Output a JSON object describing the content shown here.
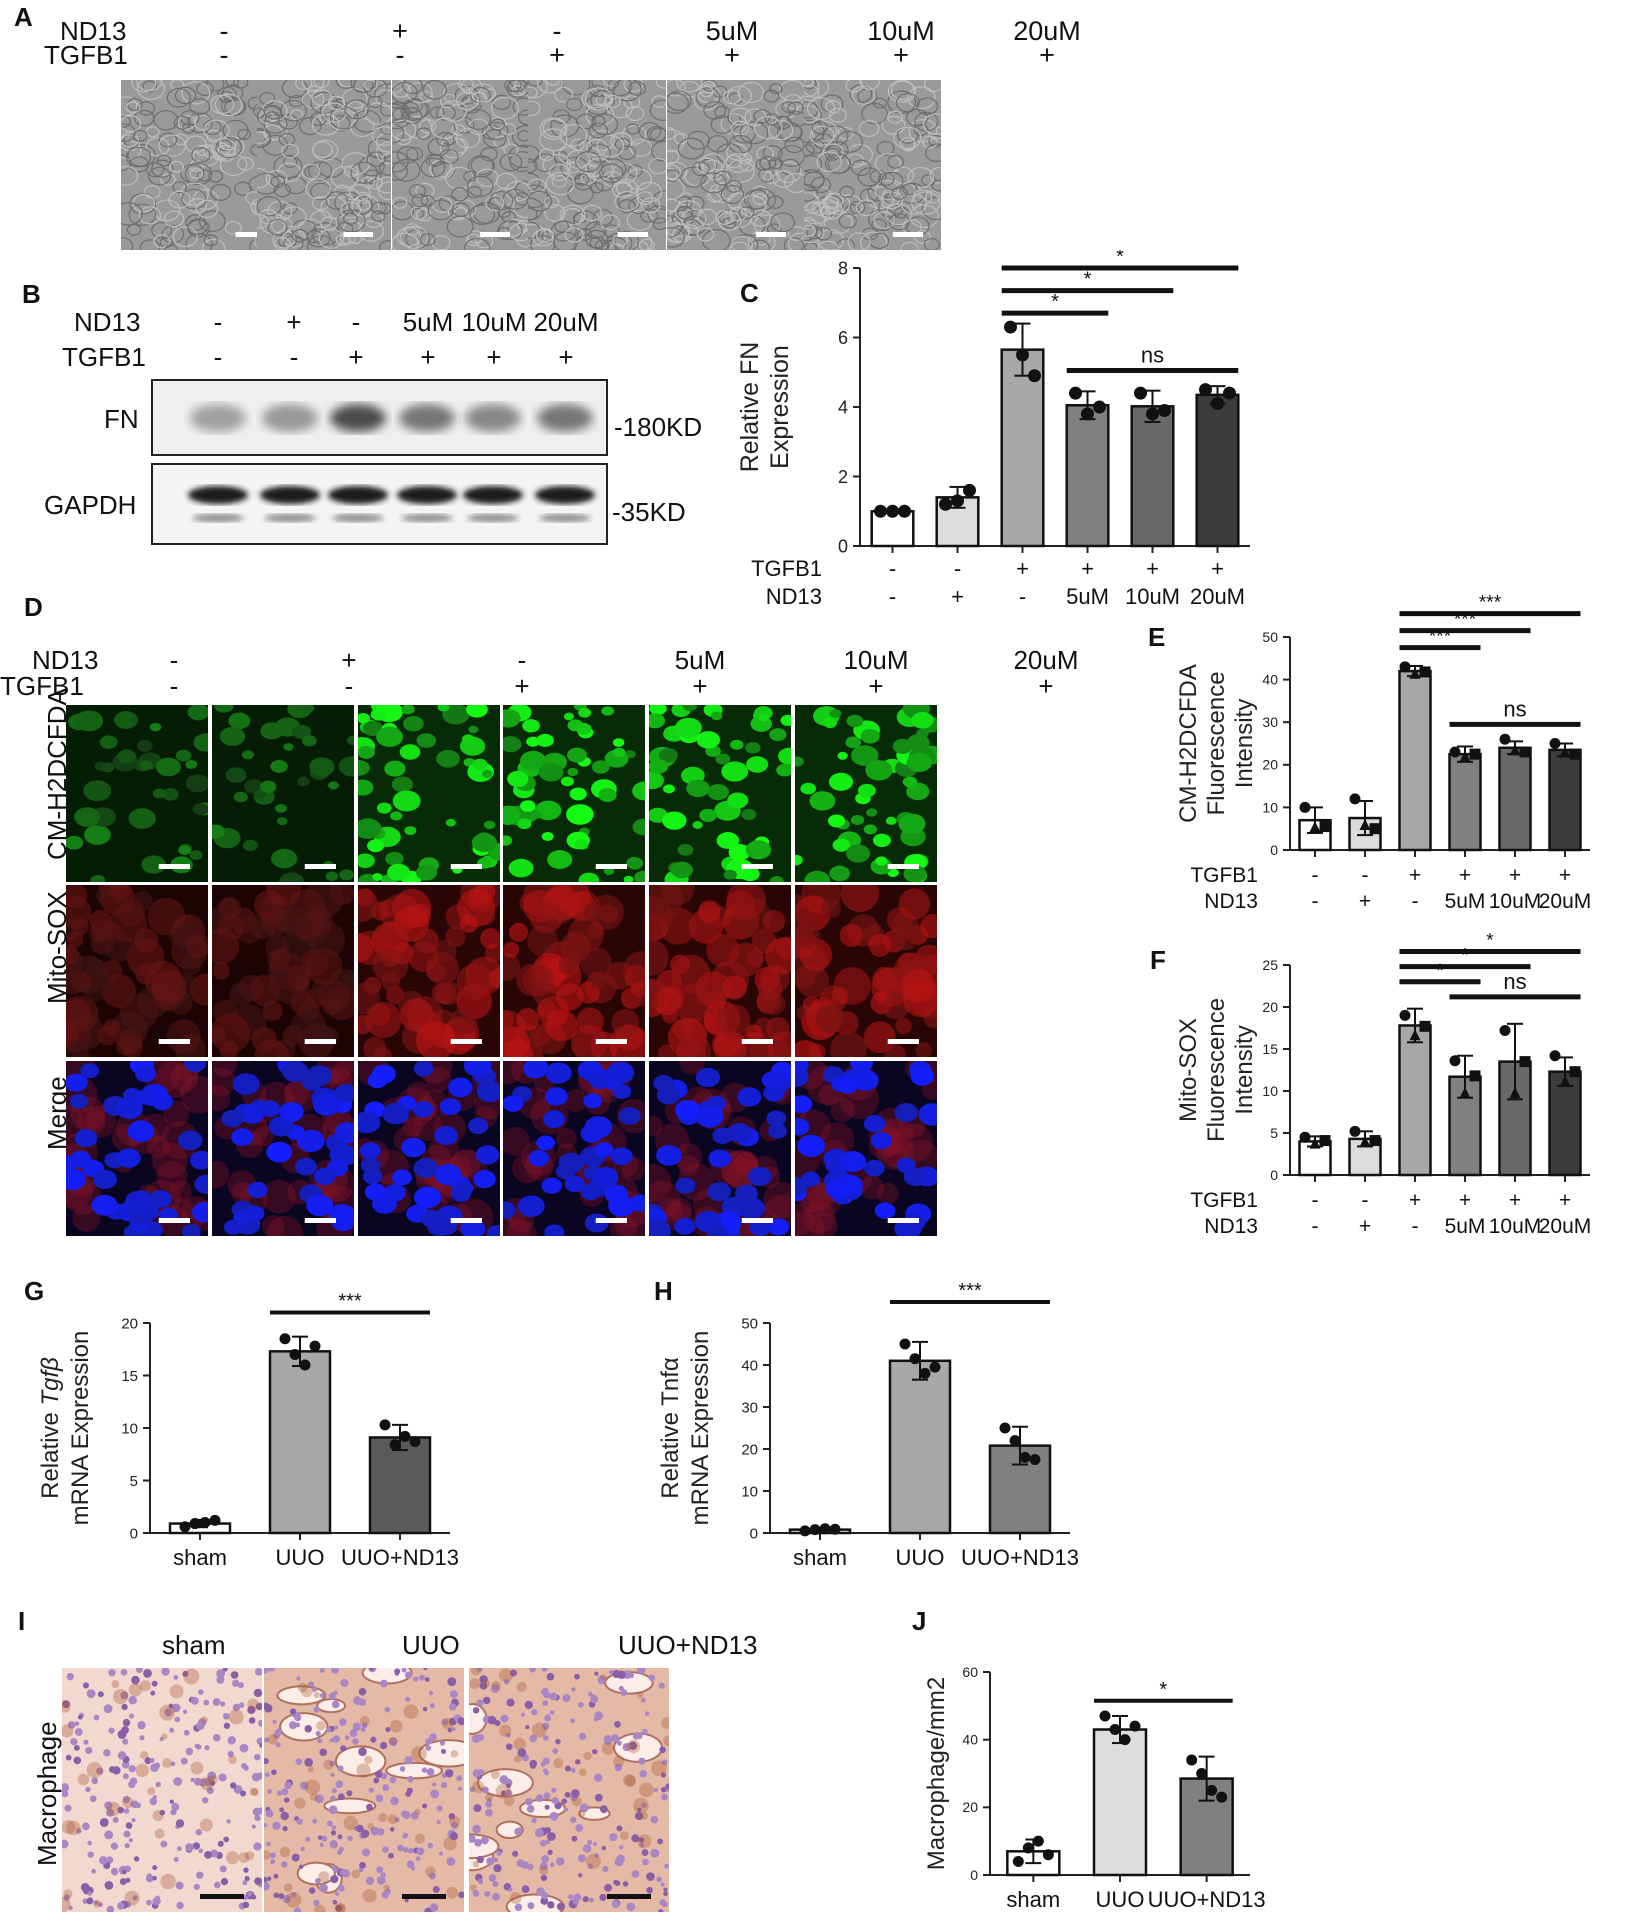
{
  "panels": {
    "A": {
      "label": "A",
      "row_labels": [
        "ND13",
        "TGFB1"
      ],
      "nd13": [
        "-",
        "+",
        "-",
        "5uM",
        "10uM",
        "20uM"
      ],
      "tgfb1": [
        "-",
        "-",
        "+",
        "+",
        "+",
        "+"
      ]
    },
    "B": {
      "label": "B",
      "row_labels": [
        "ND13",
        "TGFB1"
      ],
      "nd13": [
        "-",
        "+",
        "-",
        "5uM",
        "10uM",
        "20uM"
      ],
      "tgfb1": [
        "-",
        "-",
        "+",
        "+",
        "+",
        "+"
      ],
      "blot_labels": [
        "FN",
        "GAPDH"
      ],
      "kd_labels": [
        "-180KD",
        "-35KD"
      ]
    },
    "C": {
      "label": "C"
    },
    "D": {
      "label": "D",
      "row_labels": [
        "ND13",
        "TGFB1"
      ],
      "nd13": [
        "-",
        "+",
        "-",
        "5uM",
        "10uM",
        "20uM"
      ],
      "tgfb1": [
        "-",
        "-",
        "+",
        "+",
        "+",
        "+"
      ],
      "channel_labels": [
        "CM-H2DCFDA",
        "Mito-SOX",
        "Merge"
      ]
    },
    "E": {
      "label": "E"
    },
    "F": {
      "label": "F"
    },
    "G": {
      "label": "G"
    },
    "H": {
      "label": "H"
    },
    "I": {
      "label": "I",
      "row_label": "Macrophage",
      "columns": [
        "sham",
        "UUO",
        "UUO+ND13"
      ]
    },
    "J": {
      "label": "J"
    }
  },
  "chart_data": [
    {
      "id": "C",
      "type": "bar",
      "ylabel_lines": [
        "Relative FN",
        "Expression"
      ],
      "ylim": [
        0,
        8
      ],
      "yticks": [
        0,
        2,
        4,
        6,
        8
      ],
      "group_rows": [
        {
          "name": "TGFB1",
          "values": [
            "-",
            "-",
            "+",
            "+",
            "+",
            "+"
          ]
        },
        {
          "name": "ND13",
          "values": [
            "-",
            "+",
            "-",
            "5uM",
            "10uM",
            "20uM"
          ]
        }
      ],
      "values": [
        1.0,
        1.4,
        5.65,
        4.05,
        4.02,
        4.35
      ],
      "errors": [
        0.02,
        0.3,
        0.75,
        0.4,
        0.45,
        0.25
      ],
      "points": [
        [
          1.0,
          1.0,
          1.0
        ],
        [
          1.2,
          1.3,
          1.6
        ],
        [
          6.3,
          5.5,
          4.9
        ],
        [
          4.4,
          3.8,
          4.0
        ],
        [
          4.4,
          3.8,
          3.9
        ],
        [
          4.5,
          4.1,
          4.4
        ]
      ],
      "bar_colors": [
        "#ffffff",
        "#dcdcdc",
        "#a8a8a8",
        "#808080",
        "#696969",
        "#3c3c3c"
      ],
      "marker": "circle",
      "significance": [
        {
          "from": 2,
          "to": 3,
          "label": "*",
          "y": 6.7
        },
        {
          "from": 2,
          "to": 4,
          "label": "*",
          "y": 7.35
        },
        {
          "from": 2,
          "to": 5,
          "label": "*",
          "y": 8.0
        },
        {
          "from": 3,
          "to": 5,
          "label": "ns",
          "y": 5.05
        }
      ]
    },
    {
      "id": "E",
      "type": "bar",
      "ylabel_lines": [
        "CM-H2DCFDA",
        "Fluorescence",
        "Intensity"
      ],
      "ylim": [
        0,
        50
      ],
      "yticks": [
        0,
        10,
        20,
        30,
        40,
        50
      ],
      "group_rows": [
        {
          "name": "TGFB1",
          "values": [
            "-",
            "-",
            "+",
            "+",
            "+",
            "+"
          ]
        },
        {
          "name": "ND13",
          "values": [
            "-",
            "+",
            "-",
            "5uM",
            "10uM",
            "20uM"
          ]
        }
      ],
      "values": [
        7.0,
        7.5,
        42.0,
        22.5,
        24.0,
        23.5
      ],
      "errors": [
        3.0,
        4.0,
        1.2,
        1.8,
        1.5,
        1.5
      ],
      "points": [
        [
          10.0,
          5.5,
          5.5
        ],
        [
          12.0,
          6.0,
          5.0
        ],
        [
          43.0,
          41.5,
          41.8
        ],
        [
          23.0,
          22.0,
          22.5
        ],
        [
          26.0,
          23.5,
          23.0
        ],
        [
          25.0,
          23.0,
          22.5
        ]
      ],
      "bar_colors": [
        "#ffffff",
        "#dcdcdc",
        "#a8a8a8",
        "#808080",
        "#696969",
        "#3c3c3c"
      ],
      "marker": "mixed",
      "significance": [
        {
          "from": 2,
          "to": 3,
          "label": "***",
          "y": 47.5
        },
        {
          "from": 2,
          "to": 4,
          "label": "***",
          "y": 51.5
        },
        {
          "from": 2,
          "to": 5,
          "label": "***",
          "y": 55.5
        },
        {
          "from": 3,
          "to": 5,
          "label": "ns",
          "y": 29.5
        }
      ]
    },
    {
      "id": "F",
      "type": "bar",
      "ylabel_lines": [
        "Mito-SOX",
        "Fluorescence",
        "Intensity"
      ],
      "ylim": [
        0,
        25
      ],
      "yticks": [
        0,
        5,
        10,
        15,
        20,
        25
      ],
      "group_rows": [
        {
          "name": "TGFB1",
          "values": [
            "-",
            "-",
            "+",
            "+",
            "+",
            "+"
          ]
        },
        {
          "name": "ND13",
          "values": [
            "-",
            "+",
            "-",
            "5uM",
            "10uM",
            "20uM"
          ]
        }
      ],
      "values": [
        4.0,
        4.3,
        17.8,
        11.7,
        13.5,
        12.3
      ],
      "errors": [
        0.6,
        0.9,
        2.0,
        2.5,
        4.5,
        1.7
      ],
      "points": [
        [
          4.5,
          3.8,
          4.1
        ],
        [
          5.2,
          4.0,
          4.1
        ],
        [
          19.0,
          16.7,
          17.7
        ],
        [
          13.6,
          9.8,
          11.8
        ],
        [
          17.2,
          9.8,
          13.5
        ],
        [
          14.2,
          11.2,
          12.3
        ]
      ],
      "bar_colors": [
        "#ffffff",
        "#dcdcdc",
        "#a8a8a8",
        "#808080",
        "#696969",
        "#3c3c3c"
      ],
      "marker": "mixed",
      "significance": [
        {
          "from": 2,
          "to": 3,
          "label": "*",
          "y": 23.0
        },
        {
          "from": 2,
          "to": 4,
          "label": "*",
          "y": 24.8
        },
        {
          "from": 2,
          "to": 5,
          "label": "*",
          "y": 26.6
        },
        {
          "from": 3,
          "to": 5,
          "label": "ns",
          "y": 21.2
        }
      ]
    },
    {
      "id": "G",
      "type": "bar",
      "ylabel_lines": [
        "Relative Tgfβ",
        "mRNA Expression"
      ],
      "ylabel_italic_part": "Tgfβ",
      "ylim": [
        0,
        20
      ],
      "yticks": [
        0,
        5,
        10,
        15,
        20
      ],
      "categories": [
        "sham",
        "UUO",
        "UUO+ND13"
      ],
      "values": [
        0.9,
        17.3,
        9.1
      ],
      "errors": [
        0.35,
        1.4,
        1.2
      ],
      "points": [
        [
          0.6,
          0.9,
          1.0,
          1.2
        ],
        [
          18.5,
          17.0,
          16.0,
          17.8
        ],
        [
          10.3,
          8.4,
          9.2,
          8.7
        ]
      ],
      "bar_colors": [
        "#ffffff",
        "#a8a8a8",
        "#5a5a5a"
      ],
      "marker": "circle",
      "significance": [
        {
          "from": 1,
          "to": 2,
          "label": "***",
          "y": 21.0
        }
      ]
    },
    {
      "id": "H",
      "type": "bar",
      "ylabel_lines": [
        "Relative Tnfα",
        "mRNA Expression"
      ],
      "ylim": [
        0,
        50
      ],
      "yticks": [
        0,
        10,
        20,
        30,
        40,
        50
      ],
      "categories": [
        "sham",
        "UUO",
        "UUO+ND13"
      ],
      "values": [
        0.8,
        41.0,
        20.8
      ],
      "errors": [
        0.3,
        4.5,
        4.5
      ],
      "points": [
        [
          0.5,
          0.8,
          1.0,
          0.9
        ],
        [
          45.0,
          41.5,
          38.0,
          39.5
        ],
        [
          25.0,
          22.0,
          18.0,
          17.5
        ]
      ],
      "bar_colors": [
        "#ffffff",
        "#a8a8a8",
        "#808080"
      ],
      "marker": "circle",
      "significance": [
        {
          "from": 1,
          "to": 2,
          "label": "***",
          "y": 55.0
        }
      ]
    },
    {
      "id": "J",
      "type": "bar",
      "ylabel_lines": [
        "Macrophage/mm2"
      ],
      "ylim": [
        0,
        60
      ],
      "yticks": [
        0,
        20,
        40,
        60
      ],
      "categories": [
        "sham",
        "UUO",
        "UUO+ND13"
      ],
      "values": [
        7.0,
        43.0,
        28.5
      ],
      "errors": [
        3.5,
        4.0,
        6.5
      ],
      "points": [
        [
          4.0,
          8.0,
          10.0,
          6.0
        ],
        [
          47.0,
          43.0,
          40.0,
          44.0
        ],
        [
          34.0,
          30.0,
          25.0,
          23.0
        ]
      ],
      "bar_colors": [
        "#ffffff",
        "#dcdcdc",
        "#808080"
      ],
      "marker": "circle",
      "significance": [
        {
          "from": 1,
          "to": 2,
          "label": "*",
          "y": 51.5
        }
      ]
    }
  ]
}
